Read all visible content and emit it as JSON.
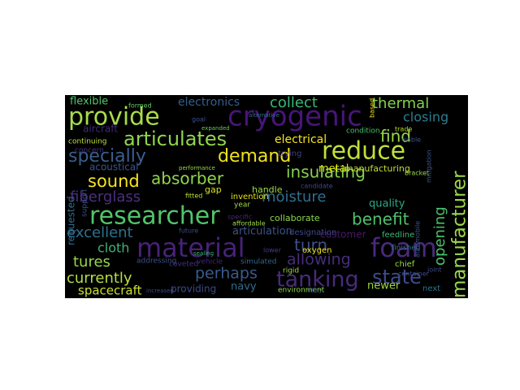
{
  "wordcloud": {
    "background": "#000000",
    "words": [
      {
        "text": "provide",
        "color": "#a8dc4a"
      },
      {
        "text": "cryogenic",
        "color": "#47157a"
      },
      {
        "text": "material",
        "color": "#472278"
      },
      {
        "text": "foam",
        "color": "#482a7b"
      },
      {
        "text": "researcher",
        "color": "#51c56a"
      },
      {
        "text": "reduce",
        "color": "#bfe03c"
      },
      {
        "text": "manufacturer",
        "color": "#9bd94a"
      },
      {
        "text": "tanking",
        "color": "#482a7b"
      },
      {
        "text": "state",
        "color": "#3d4b8a"
      },
      {
        "text": "articulates",
        "color": "#8fd64c"
      },
      {
        "text": "specially",
        "color": "#3a5f8d"
      },
      {
        "text": "demand",
        "color": "#f2e21f"
      },
      {
        "text": "sound",
        "color": "#f4e61e"
      },
      {
        "text": "absorber",
        "color": "#90d64b"
      },
      {
        "text": "insulating",
        "color": "#84d24f"
      },
      {
        "text": "benefit",
        "color": "#4ec16b"
      },
      {
        "text": "turn",
        "color": "#3e508a"
      },
      {
        "text": "allowing",
        "color": "#472d7b"
      },
      {
        "text": "perhaps",
        "color": "#3a5a8d"
      },
      {
        "text": "collect",
        "color": "#3cb678"
      },
      {
        "text": "thermal",
        "color": "#84d24f"
      },
      {
        "text": "closing",
        "color": "#2a7e8e"
      },
      {
        "text": "find",
        "color": "#9ad94b"
      },
      {
        "text": "opening",
        "color": "#49c26c"
      },
      {
        "text": "moisture",
        "color": "#2f6e8e"
      },
      {
        "text": "fiberglass",
        "color": "#4b2f7f"
      },
      {
        "text": "excellent",
        "color": "#2d718e"
      },
      {
        "text": "cloth",
        "color": "#3cb47a"
      },
      {
        "text": "tures",
        "color": "#93d74b"
      },
      {
        "text": "currently",
        "color": "#b5de43"
      },
      {
        "text": "spacecraft",
        "color": "#c8e032"
      },
      {
        "text": "flexible",
        "color": "#52c469"
      },
      {
        "text": "electronics",
        "color": "#355e8d"
      },
      {
        "text": "aircraft",
        "color": "#402a78"
      },
      {
        "text": "electrical",
        "color": "#f4e51e"
      },
      {
        "text": "metal",
        "color": "#dde318"
      },
      {
        "text": "manufacturing",
        "color": "#bfdf3a"
      },
      {
        "text": "quality",
        "color": "#29a883"
      },
      {
        "text": "acoustical",
        "color": "#3a548c"
      },
      {
        "text": "handle",
        "color": "#a0da46"
      },
      {
        "text": "gap",
        "color": "#d8e219"
      },
      {
        "text": "invention",
        "color": "#e5e419"
      },
      {
        "text": "customer",
        "color": "#48186a"
      },
      {
        "text": "articulation",
        "color": "#3b528b"
      },
      {
        "text": "collaborate",
        "color": "#8fd64c"
      },
      {
        "text": "requested",
        "color": "#2f6c8e"
      },
      {
        "text": "navy",
        "color": "#2f6c8e"
      },
      {
        "text": "providing",
        "color": "#3e4989"
      },
      {
        "text": "newer",
        "color": "#9dd93b"
      },
      {
        "text": "next",
        "color": "#2b758e"
      },
      {
        "text": "feedline",
        "color": "#38b977"
      },
      {
        "text": "continuing",
        "color": "#bfe03c"
      },
      {
        "text": "concern",
        "color": "#46327e"
      },
      {
        "text": "formed",
        "color": "#65cb5e"
      },
      {
        "text": "goal",
        "color": "#3b528b"
      },
      {
        "text": "condition",
        "color": "#48c16e"
      },
      {
        "text": "based",
        "color": "#f2e21f"
      },
      {
        "text": "trying",
        "color": "#433e85"
      },
      {
        "text": "support",
        "color": "#3a548c"
      },
      {
        "text": "year",
        "color": "#a6db43"
      },
      {
        "text": "vehicle",
        "color": "#482576"
      },
      {
        "text": "candidate",
        "color": "#3e4989"
      },
      {
        "text": "designation",
        "color": "#3e4989"
      },
      {
        "text": "oxygen",
        "color": "#f1e51d"
      },
      {
        "text": "rigid",
        "color": "#9bd84c"
      },
      {
        "text": "environment",
        "color": "#91d742"
      },
      {
        "text": "addressing",
        "color": "#3b528b"
      },
      {
        "text": "coveted",
        "color": "#46307e"
      },
      {
        "text": "simulated",
        "color": "#31688e"
      },
      {
        "text": "chief",
        "color": "#9ad94b"
      },
      {
        "text": "finished",
        "color": "#2b758e"
      },
      {
        "text": "automobile",
        "color": "#3a548c"
      },
      {
        "text": "lower",
        "color": "#433e85"
      },
      {
        "text": "future",
        "color": "#3e4a89"
      },
      {
        "text": "joint",
        "color": "#3e4a89"
      },
      {
        "text": "specific",
        "color": "#482475"
      },
      {
        "text": "affordable",
        "color": "#a0da46"
      },
      {
        "text": "increased",
        "color": "#3e4a89"
      },
      {
        "text": "bracket",
        "color": "#9ad94b"
      },
      {
        "text": "mitigation",
        "color": "#3a548c"
      },
      {
        "text": "viable",
        "color": "#3a548c"
      },
      {
        "text": "trade",
        "color": "#b5de2b"
      },
      {
        "text": "fitted",
        "color": "#bfe03c"
      },
      {
        "text": "container",
        "color": "#3e4a89"
      },
      {
        "text": "easy",
        "color": "#3a548c"
      },
      {
        "text": "performance",
        "color": "#9ad94b"
      },
      {
        "text": "expanded",
        "color": "#65cb5e"
      },
      {
        "text": "alternative",
        "color": "#2e6f8e"
      },
      {
        "text": "sealing",
        "color": "#38b977"
      }
    ]
  }
}
